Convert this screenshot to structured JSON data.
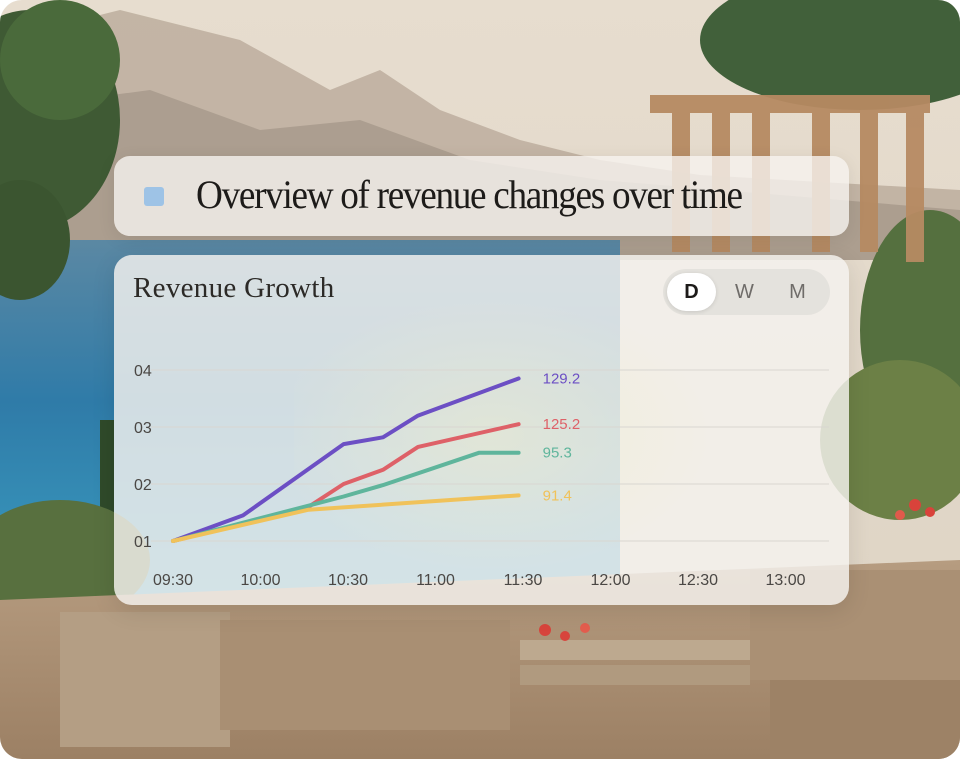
{
  "title_card": {
    "title": "Overview of revenue changes over time",
    "square_color": "#9ec3e6"
  },
  "range_toggle": {
    "options": [
      "D",
      "W",
      "M"
    ],
    "selected": "D"
  },
  "chart_data": {
    "type": "line",
    "title": "Revenue Growth",
    "xlabel": "",
    "ylabel": "",
    "categories": [
      "09:30",
      "10:00",
      "10:30",
      "11:00",
      "11:30",
      "12:00",
      "12:30",
      "13:00"
    ],
    "y_ticks": [
      "01",
      "02",
      "03",
      "04"
    ],
    "ylim": [
      1,
      4.2
    ],
    "grid": true,
    "legend": "none",
    "series": [
      {
        "color": "#6c4fc4",
        "end_label": "129.2",
        "points": [
          [
            0,
            1.0
          ],
          [
            0.8,
            1.45
          ],
          [
            1.95,
            2.7
          ],
          [
            2.4,
            2.82
          ],
          [
            2.8,
            3.2
          ],
          [
            3.95,
            3.85
          ]
        ]
      },
      {
        "color": "#de6168",
        "end_label": "125.2",
        "points": [
          [
            0,
            1.0
          ],
          [
            1.55,
            1.6
          ],
          [
            1.95,
            2.0
          ],
          [
            2.4,
            2.25
          ],
          [
            2.8,
            2.65
          ],
          [
            3.95,
            3.05
          ]
        ]
      },
      {
        "color": "#5fb59c",
        "end_label": "95.3",
        "points": [
          [
            0,
            1.0
          ],
          [
            1.95,
            1.78
          ],
          [
            2.4,
            1.98
          ],
          [
            3.5,
            2.55
          ],
          [
            3.95,
            2.55
          ]
        ]
      },
      {
        "color": "#f0c25a",
        "end_label": "91.4",
        "points": [
          [
            0,
            1.0
          ],
          [
            1.55,
            1.55
          ],
          [
            3.95,
            1.8
          ]
        ]
      }
    ]
  }
}
